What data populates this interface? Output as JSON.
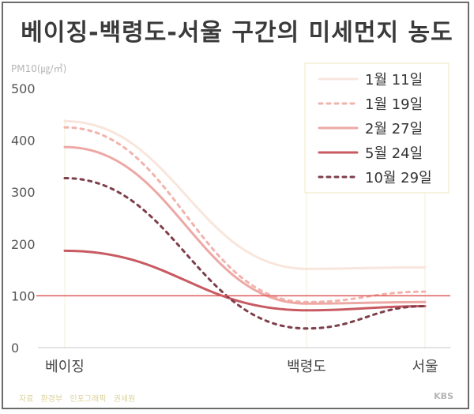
{
  "title": "베이징-백령도-서울 구간의 미세먼지 농도",
  "footer": {
    "source_label": "자료",
    "source_value": "환경부",
    "graphic_label": "인포그래픽",
    "graphic_value": "권세원",
    "brand": "KBS"
  },
  "chart_data": {
    "type": "line",
    "ylabel": "PM10(㎍/㎥)",
    "xlabel": "",
    "ylim": [
      0,
      500
    ],
    "yticks": [
      0,
      100,
      200,
      300,
      400,
      500
    ],
    "categories": [
      "베이징",
      "백령도",
      "서울"
    ],
    "reference_line": {
      "value": 100,
      "color": "#e05a5a"
    },
    "grid": false,
    "legend_position": "top-right",
    "series": [
      {
        "name": "1월 11일",
        "values": [
          437,
          152,
          155
        ],
        "color": "#f8e6dc",
        "dash": false,
        "width": 3
      },
      {
        "name": "1월 19일",
        "values": [
          425,
          88,
          108
        ],
        "color": "#f2b3ac",
        "dash": true,
        "width": 3
      },
      {
        "name": "2월 27일",
        "values": [
          387,
          85,
          88
        ],
        "color": "#eda8a4",
        "dash": false,
        "width": 3
      },
      {
        "name": "5월 24일",
        "values": [
          187,
          72,
          80
        ],
        "color": "#c85a62",
        "dash": false,
        "width": 3
      },
      {
        "name": "10월 29일",
        "values": [
          327,
          37,
          80
        ],
        "color": "#7e3f4b",
        "dash": true,
        "width": 3
      }
    ]
  }
}
